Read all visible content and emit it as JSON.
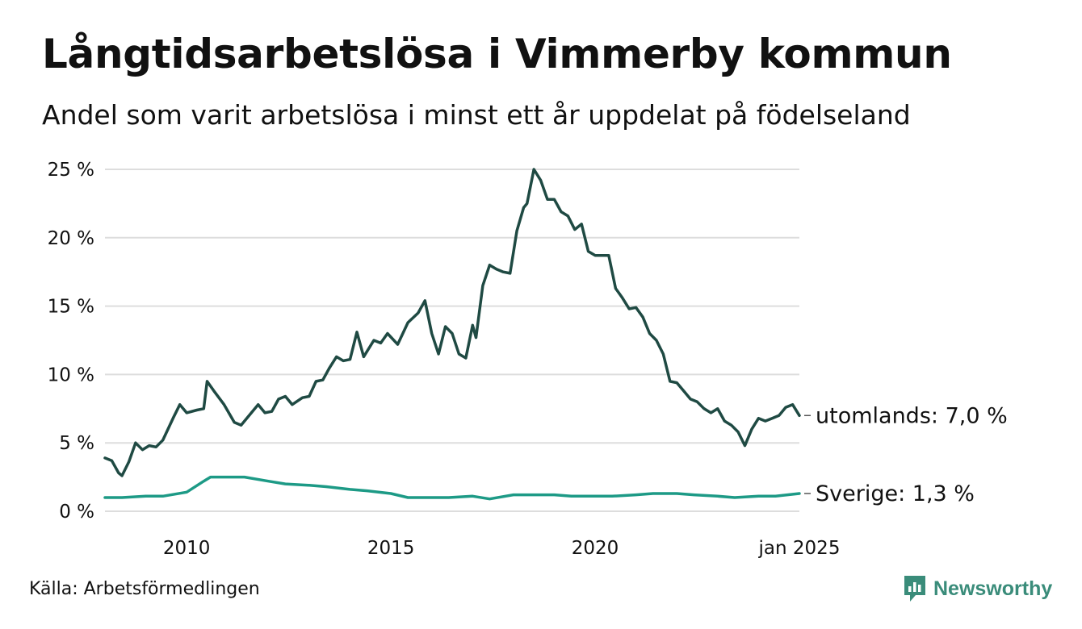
{
  "title": "Långtidsarbetslösa i Vimmerby kommun",
  "subtitle": "Andel som varit arbetslösa i minst ett år uppdelat på födelseland",
  "source": "Källa: Arbetsförmedlingen",
  "brand": "Newsworthy",
  "colors": {
    "utomlands": "#1f4a43",
    "sverige": "#1d9a86",
    "grid": "#dddddd",
    "brand": "#3a8c7a"
  },
  "chart_data": {
    "type": "line",
    "title": "Långtidsarbetslösa i Vimmerby kommun",
    "subtitle": "Andel som varit arbetslösa i minst ett år uppdelat på födelseland",
    "xlabel": "",
    "ylabel": "",
    "ylim": [
      0,
      25
    ],
    "xlim": [
      "2008-01",
      "2025-01"
    ],
    "grid": true,
    "y_ticks": [
      {
        "value": 0,
        "label": "0 %"
      },
      {
        "value": 5,
        "label": "5 %"
      },
      {
        "value": 10,
        "label": "10 %"
      },
      {
        "value": 15,
        "label": "15 %"
      },
      {
        "value": 20,
        "label": "20 %"
      },
      {
        "value": 25,
        "label": "25 %"
      }
    ],
    "x_ticks": [
      {
        "value": "2010-01",
        "label": "2010"
      },
      {
        "value": "2015-01",
        "label": "2015"
      },
      {
        "value": "2020-01",
        "label": "2020"
      },
      {
        "value": "2025-01",
        "label": "jan 2025"
      }
    ],
    "series": [
      {
        "name": "utomlands",
        "end_label": "utomlands: 7,0 %",
        "points": [
          [
            "2008-01",
            3.9
          ],
          [
            "2008-03",
            3.7
          ],
          [
            "2008-05",
            2.8
          ],
          [
            "2008-06",
            2.6
          ],
          [
            "2008-08",
            3.6
          ],
          [
            "2008-10",
            5.0
          ],
          [
            "2008-12",
            4.5
          ],
          [
            "2009-02",
            4.8
          ],
          [
            "2009-04",
            4.7
          ],
          [
            "2009-06",
            5.2
          ],
          [
            "2009-09",
            6.8
          ],
          [
            "2009-11",
            7.8
          ],
          [
            "2010-01",
            7.2
          ],
          [
            "2010-04",
            7.4
          ],
          [
            "2010-06",
            7.5
          ],
          [
            "2010-07",
            9.5
          ],
          [
            "2010-09",
            8.8
          ],
          [
            "2010-12",
            7.8
          ],
          [
            "2011-03",
            6.5
          ],
          [
            "2011-05",
            6.3
          ],
          [
            "2011-08",
            7.2
          ],
          [
            "2011-10",
            7.8
          ],
          [
            "2011-12",
            7.2
          ],
          [
            "2012-02",
            7.3
          ],
          [
            "2012-04",
            8.2
          ],
          [
            "2012-06",
            8.4
          ],
          [
            "2012-08",
            7.8
          ],
          [
            "2012-11",
            8.3
          ],
          [
            "2013-01",
            8.4
          ],
          [
            "2013-03",
            9.5
          ],
          [
            "2013-05",
            9.6
          ],
          [
            "2013-07",
            10.5
          ],
          [
            "2013-09",
            11.3
          ],
          [
            "2013-11",
            11.0
          ],
          [
            "2014-01",
            11.1
          ],
          [
            "2014-03",
            13.1
          ],
          [
            "2014-05",
            11.3
          ],
          [
            "2014-08",
            12.5
          ],
          [
            "2014-10",
            12.3
          ],
          [
            "2014-12",
            13.0
          ],
          [
            "2015-03",
            12.2
          ],
          [
            "2015-06",
            13.8
          ],
          [
            "2015-09",
            14.5
          ],
          [
            "2015-11",
            15.4
          ],
          [
            "2016-01",
            13.0
          ],
          [
            "2016-03",
            11.5
          ],
          [
            "2016-05",
            13.5
          ],
          [
            "2016-07",
            13.0
          ],
          [
            "2016-09",
            11.5
          ],
          [
            "2016-11",
            11.2
          ],
          [
            "2017-01",
            13.6
          ],
          [
            "2017-02",
            12.7
          ],
          [
            "2017-04",
            16.5
          ],
          [
            "2017-06",
            18.0
          ],
          [
            "2017-08",
            17.7
          ],
          [
            "2017-10",
            17.5
          ],
          [
            "2017-12",
            17.4
          ],
          [
            "2018-02",
            20.5
          ],
          [
            "2018-04",
            22.2
          ],
          [
            "2018-05",
            22.5
          ],
          [
            "2018-07",
            25.0
          ],
          [
            "2018-09",
            24.2
          ],
          [
            "2018-11",
            22.8
          ],
          [
            "2019-01",
            22.8
          ],
          [
            "2019-03",
            21.9
          ],
          [
            "2019-05",
            21.6
          ],
          [
            "2019-07",
            20.6
          ],
          [
            "2019-09",
            21.0
          ],
          [
            "2019-11",
            19.0
          ],
          [
            "2020-01",
            18.7
          ],
          [
            "2020-03",
            18.7
          ],
          [
            "2020-05",
            18.7
          ],
          [
            "2020-07",
            16.3
          ],
          [
            "2020-09",
            15.6
          ],
          [
            "2020-11",
            14.8
          ],
          [
            "2021-01",
            14.9
          ],
          [
            "2021-03",
            14.2
          ],
          [
            "2021-05",
            13.0
          ],
          [
            "2021-07",
            12.5
          ],
          [
            "2021-09",
            11.5
          ],
          [
            "2021-11",
            9.5
          ],
          [
            "2022-01",
            9.4
          ],
          [
            "2022-03",
            8.8
          ],
          [
            "2022-05",
            8.2
          ],
          [
            "2022-07",
            8.0
          ],
          [
            "2022-09",
            7.5
          ],
          [
            "2022-11",
            7.2
          ],
          [
            "2023-01",
            7.5
          ],
          [
            "2023-03",
            6.6
          ],
          [
            "2023-05",
            6.3
          ],
          [
            "2023-07",
            5.8
          ],
          [
            "2023-09",
            4.8
          ],
          [
            "2023-11",
            6.0
          ],
          [
            "2024-01",
            6.8
          ],
          [
            "2024-03",
            6.6
          ],
          [
            "2024-05",
            6.8
          ],
          [
            "2024-07",
            7.0
          ],
          [
            "2024-09",
            7.6
          ],
          [
            "2024-11",
            7.8
          ],
          [
            "2025-01",
            7.0
          ]
        ]
      },
      {
        "name": "Sverige",
        "end_label": "Sverige: 1,3 %",
        "points": [
          [
            "2008-01",
            1.0
          ],
          [
            "2008-06",
            1.0
          ],
          [
            "2009-01",
            1.1
          ],
          [
            "2009-06",
            1.1
          ],
          [
            "2010-01",
            1.4
          ],
          [
            "2010-06",
            2.2
          ],
          [
            "2010-08",
            2.5
          ],
          [
            "2011-01",
            2.5
          ],
          [
            "2011-06",
            2.5
          ],
          [
            "2012-01",
            2.2
          ],
          [
            "2012-06",
            2.0
          ],
          [
            "2013-01",
            1.9
          ],
          [
            "2013-06",
            1.8
          ],
          [
            "2014-01",
            1.6
          ],
          [
            "2014-06",
            1.5
          ],
          [
            "2015-01",
            1.3
          ],
          [
            "2015-06",
            1.0
          ],
          [
            "2016-01",
            1.0
          ],
          [
            "2016-06",
            1.0
          ],
          [
            "2017-01",
            1.1
          ],
          [
            "2017-06",
            0.9
          ],
          [
            "2018-01",
            1.2
          ],
          [
            "2018-06",
            1.2
          ],
          [
            "2019-01",
            1.2
          ],
          [
            "2019-06",
            1.1
          ],
          [
            "2020-01",
            1.1
          ],
          [
            "2020-06",
            1.1
          ],
          [
            "2021-01",
            1.2
          ],
          [
            "2021-06",
            1.3
          ],
          [
            "2022-01",
            1.3
          ],
          [
            "2022-06",
            1.2
          ],
          [
            "2023-01",
            1.1
          ],
          [
            "2023-06",
            1.0
          ],
          [
            "2024-01",
            1.1
          ],
          [
            "2024-06",
            1.1
          ],
          [
            "2025-01",
            1.3
          ]
        ]
      }
    ]
  }
}
